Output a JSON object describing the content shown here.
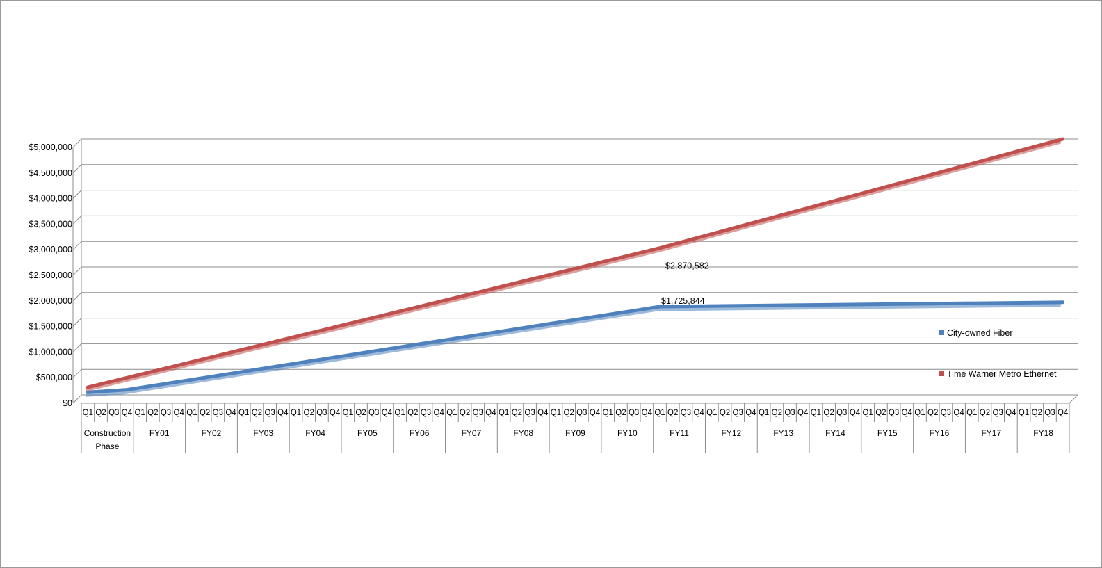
{
  "chart_data": {
    "type": "line",
    "title": "",
    "xlabel": "",
    "ylabel": "",
    "ylim": [
      0,
      5000000
    ],
    "yticks": [
      "$0",
      "$500,000",
      "$1,000,000",
      "$1,500,000",
      "$2,000,000",
      "$2,500,000",
      "$3,000,000",
      "$3,500,000",
      "$4,000,000",
      "$4,500,000",
      "$5,000,000"
    ],
    "quarter_labels": [
      "Q1",
      "Q2",
      "Q3",
      "Q4"
    ],
    "periods": [
      "Construction Phase",
      "FY01",
      "FY02",
      "FY03",
      "FY04",
      "FY05",
      "FY06",
      "FY07",
      "FY08",
      "FY09",
      "FY10",
      "FY11",
      "FY12",
      "FY13",
      "FY14",
      "FY15",
      "FY16",
      "FY17",
      "FY18"
    ],
    "grid": true,
    "legend": "right",
    "series": [
      {
        "name": "City-owned Fiber",
        "color": "#4f81bd",
        "points": [
          {
            "q": 0,
            "value": 50000
          },
          {
            "q": 3,
            "value": 100000
          },
          {
            "q": 44,
            "value": 1725844
          },
          {
            "q": 75,
            "value": 1810000
          }
        ]
      },
      {
        "name": "Time Warner Metro Ethernet",
        "color": "#c0504d",
        "points": [
          {
            "q": 0,
            "value": 150000
          },
          {
            "q": 44,
            "value": 2870582
          },
          {
            "q": 75,
            "value": 5000000
          }
        ]
      }
    ],
    "annotations": [
      {
        "text": "$1,725,844",
        "q": 44,
        "value": 1725844
      },
      {
        "text": "$2,870,582",
        "q": 44,
        "value": 2870582
      }
    ]
  }
}
